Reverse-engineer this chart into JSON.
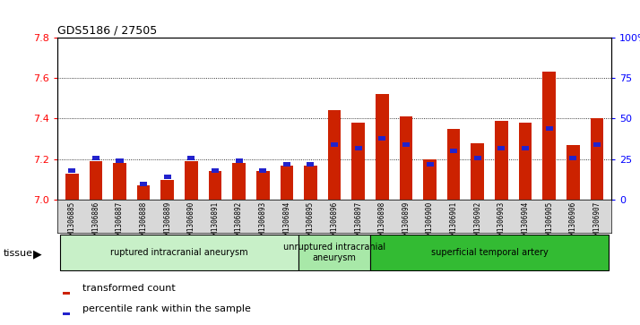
{
  "title": "GDS5186 / 27505",
  "samples": [
    "GSM1306885",
    "GSM1306886",
    "GSM1306887",
    "GSM1306888",
    "GSM1306889",
    "GSM1306890",
    "GSM1306891",
    "GSM1306892",
    "GSM1306893",
    "GSM1306894",
    "GSM1306895",
    "GSM1306896",
    "GSM1306897",
    "GSM1306898",
    "GSM1306899",
    "GSM1306900",
    "GSM1306901",
    "GSM1306902",
    "GSM1306903",
    "GSM1306904",
    "GSM1306905",
    "GSM1306906",
    "GSM1306907"
  ],
  "transformed_count": [
    7.13,
    7.19,
    7.18,
    7.07,
    7.1,
    7.19,
    7.14,
    7.18,
    7.14,
    7.17,
    7.17,
    7.44,
    7.38,
    7.52,
    7.41,
    7.2,
    7.35,
    7.28,
    7.39,
    7.38,
    7.63,
    7.27,
    7.4
  ],
  "percentile_rank": [
    18,
    26,
    24,
    10,
    14,
    26,
    18,
    24,
    18,
    22,
    22,
    34,
    32,
    38,
    34,
    22,
    30,
    26,
    32,
    32,
    44,
    26,
    34
  ],
  "groups": [
    {
      "label": "ruptured intracranial aneurysm",
      "start": 0,
      "end": 10,
      "color": "#c8f0c8"
    },
    {
      "label": "unruptured intracranial\naneurysm",
      "start": 10,
      "end": 13,
      "color": "#a8e8a8"
    },
    {
      "label": "superficial temporal artery",
      "start": 13,
      "end": 23,
      "color": "#33bb33"
    }
  ],
  "ylim_left": [
    7.0,
    7.8
  ],
  "ylim_right": [
    0,
    100
  ],
  "yticks_left": [
    7.0,
    7.2,
    7.4,
    7.6,
    7.8
  ],
  "yticks_right": [
    0,
    25,
    50,
    75,
    100
  ],
  "ytick_labels_right": [
    "0",
    "25",
    "50",
    "75",
    "100%"
  ],
  "bar_color": "#cc2200",
  "percentile_color": "#2222cc",
  "bar_width": 0.55,
  "chart_bg": "#ffffff",
  "xticklabel_bg": "#d8d8d8",
  "tissue_label": "tissue",
  "legend_items": [
    {
      "label": "transformed count",
      "color": "#cc2200"
    },
    {
      "label": "percentile rank within the sample",
      "color": "#2222cc"
    }
  ]
}
